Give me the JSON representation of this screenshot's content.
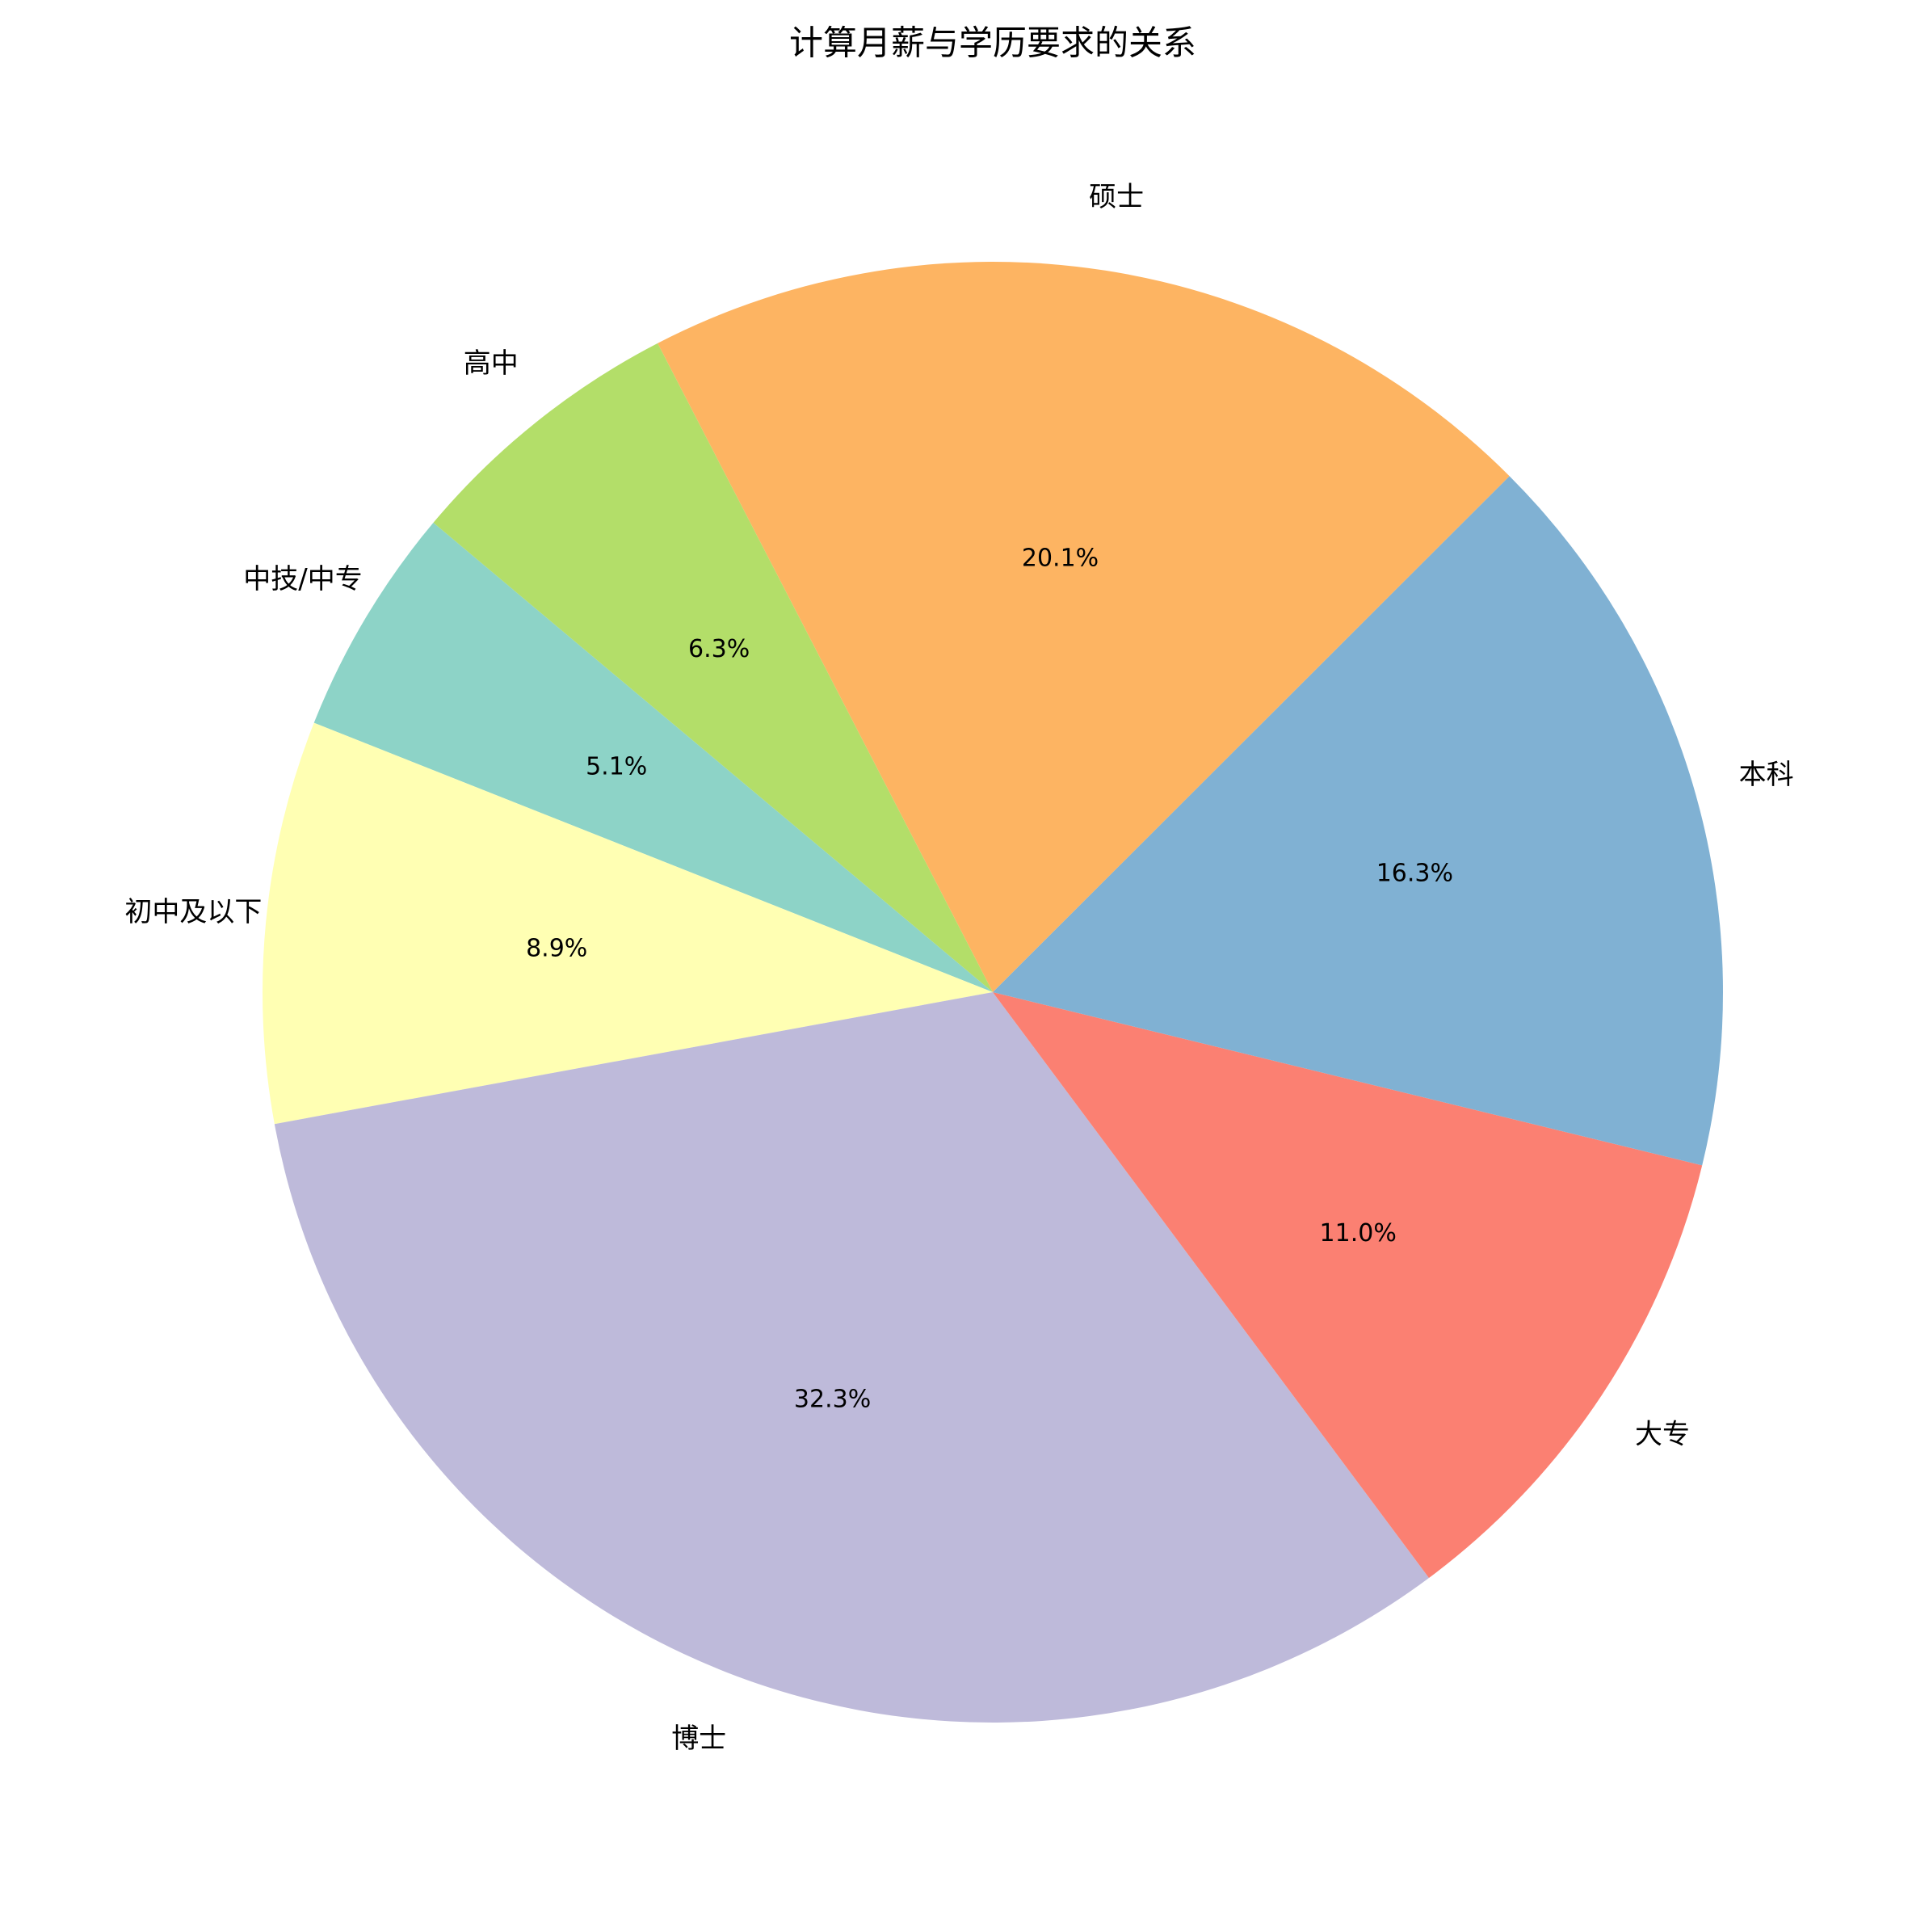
{
  "chart_data": {
    "type": "pie",
    "title": "计算月薪与学历要求的关系",
    "categories": [
      "中技/中专",
      "初中及以下",
      "博士",
      "大专",
      "本科",
      "硕士",
      "高中"
    ],
    "values": [
      5.1,
      8.9,
      32.3,
      11.0,
      16.3,
      20.1,
      6.3
    ],
    "value_labels": [
      "5.1%",
      "8.9%",
      "32.3%",
      "11.0%",
      "16.3%",
      "20.1%",
      "6.3%"
    ],
    "colors": [
      "#8dd3c7",
      "#ffffb3",
      "#bebada",
      "#fb8072",
      "#80b1d3",
      "#fdb462",
      "#b3de69"
    ]
  }
}
